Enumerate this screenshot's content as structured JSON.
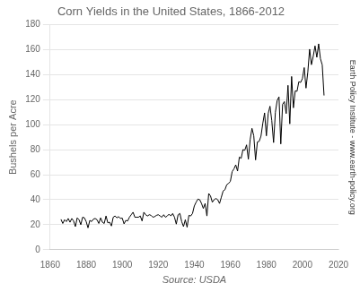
{
  "chart_data": {
    "type": "line",
    "title": "Corn Yields in the United States, 1866-2012",
    "xlabel": "Source: USDA",
    "ylabel": "Bushels per Acre",
    "annotations": [
      "Earth Policy Institute - www.earth-policy.org"
    ],
    "x": [
      1866,
      1867,
      1868,
      1869,
      1870,
      1871,
      1872,
      1873,
      1874,
      1875,
      1876,
      1877,
      1878,
      1879,
      1880,
      1881,
      1882,
      1883,
      1884,
      1885,
      1886,
      1887,
      1888,
      1889,
      1890,
      1891,
      1892,
      1893,
      1894,
      1895,
      1896,
      1897,
      1898,
      1899,
      1900,
      1901,
      1902,
      1903,
      1904,
      1905,
      1906,
      1907,
      1908,
      1909,
      1910,
      1911,
      1912,
      1913,
      1914,
      1915,
      1916,
      1917,
      1918,
      1919,
      1920,
      1921,
      1922,
      1923,
      1924,
      1925,
      1926,
      1927,
      1928,
      1929,
      1930,
      1931,
      1932,
      1933,
      1934,
      1935,
      1936,
      1937,
      1938,
      1939,
      1940,
      1941,
      1942,
      1943,
      1944,
      1945,
      1946,
      1947,
      1948,
      1949,
      1950,
      1951,
      1952,
      1953,
      1954,
      1955,
      1956,
      1957,
      1958,
      1959,
      1960,
      1961,
      1962,
      1963,
      1964,
      1965,
      1966,
      1967,
      1968,
      1969,
      1970,
      1971,
      1972,
      1973,
      1974,
      1975,
      1976,
      1977,
      1978,
      1979,
      1980,
      1981,
      1982,
      1983,
      1984,
      1985,
      1986,
      1987,
      1988,
      1989,
      1990,
      1991,
      1992,
      1993,
      1994,
      1995,
      1996,
      1997,
      1998,
      1999,
      2000,
      2001,
      2002,
      2003,
      2004,
      2005,
      2006,
      2007,
      2008,
      2009,
      2010,
      2011,
      2012
    ],
    "values": [
      24.3,
      21.0,
      24.0,
      22.5,
      25.0,
      22.0,
      25.0,
      23.0,
      18.5,
      25.5,
      24.0,
      20.0,
      26.0,
      25.5,
      22.5,
      17.5,
      23.5,
      22.5,
      24.5,
      25.0,
      24.0,
      21.0,
      25.5,
      22.0,
      21.0,
      27.0,
      21.5,
      22.0,
      19.0,
      26.0,
      27.0,
      25.5,
      26.5,
      25.0,
      25.3,
      20.7,
      23.5,
      23.0,
      26.0,
      28.0,
      30.0,
      26.0,
      26.0,
      26.0,
      27.0,
      23.0,
      30.0,
      28.0,
      27.0,
      28.0,
      27.5,
      26.0,
      26.5,
      27.5,
      28.0,
      27.0,
      26.0,
      28.0,
      26.0,
      27.0,
      28.5,
      27.0,
      29.0,
      26.0,
      20.5,
      28.0,
      29.0,
      22.5,
      18.5,
      24.0,
      18.0,
      27.5,
      27.0,
      29.0,
      35.0,
      38.0,
      40.5,
      40.0,
      37.0,
      33.0,
      37.0,
      27.0,
      45.0,
      43.0,
      38.0,
      40.0,
      41.0,
      40.0,
      37.0,
      42.0,
      47.0,
      48.0,
      52.0,
      53.0,
      54.7,
      62.4,
      64.7,
      67.9,
      62.9,
      74.1,
      73.1,
      80.1,
      79.5,
      83.9,
      72.4,
      88.1,
      97.1,
      91.1,
      71.8,
      86.2,
      86.7,
      90.8,
      101.0,
      109.5,
      91.1,
      108.9,
      114.8,
      103.3,
      85.7,
      110.0,
      119.4,
      122.3,
      84.6,
      116.3,
      118.5,
      108.9,
      131.5,
      100.7,
      138.6,
      113.5,
      127.1,
      126.7,
      134.4,
      133.8,
      136.9,
      145.7,
      129.3,
      142.2,
      160.4,
      148.0,
      154.7,
      163.1,
      153.9,
      164.7,
      152.8,
      147.9,
      123.4
    ],
    "color": "#000000",
    "xlim": [
      1860,
      2020
    ],
    "ylim": [
      0,
      180
    ],
    "xticks": [
      1860,
      1880,
      1900,
      1920,
      1940,
      1960,
      1980,
      2000,
      2020
    ],
    "yticks": [
      0,
      20,
      40,
      60,
      80,
      100,
      120,
      140,
      160,
      180
    ],
    "grid": true
  }
}
